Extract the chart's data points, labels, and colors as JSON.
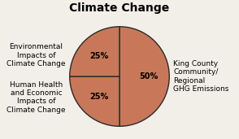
{
  "title": "Climate Change",
  "slices": [
    50,
    25,
    25
  ],
  "labels": [
    "King County\nCommunity/\nRegional\nGHG Emissions",
    "Environmental\nImpacts of\nClimate Change",
    "Human Health\nand Economic\nImpacts of\nClimate Change"
  ],
  "pct_labels": [
    "50%",
    "25%",
    "25%"
  ],
  "slice_color": "#c87858",
  "edge_color": "#2a2a2a",
  "background_color": "#f2efe9",
  "title_fontsize": 10,
  "pct_fontsize": 7,
  "label_fontsize": 6.5,
  "start_angle": 90,
  "label_r": 0.58
}
